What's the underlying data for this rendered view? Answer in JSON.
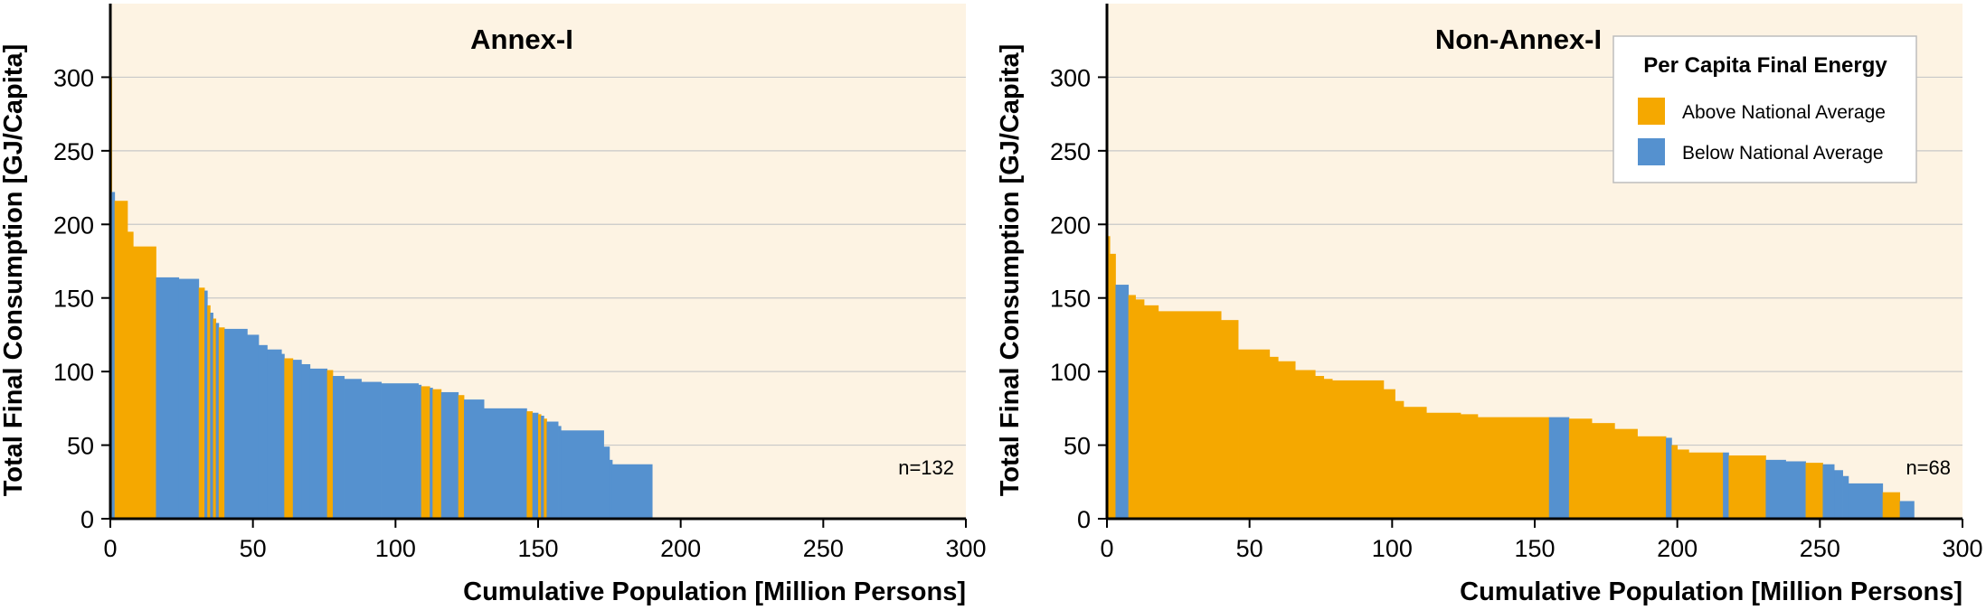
{
  "colors": {
    "background": "#fdf3e3",
    "above": "#f5a800",
    "below": "#5591cf",
    "grid": "#c8c8c8"
  },
  "legend": {
    "title": "Per Capita Final Energy",
    "items": [
      {
        "label": "Above National Average",
        "color": "#f5a800"
      },
      {
        "label": "Below National Average",
        "color": "#5591cf"
      }
    ]
  },
  "chart_data": [
    {
      "type": "area",
      "title": "Annex-I",
      "annotation": "n=132",
      "xlabel": "Cumulative Population [Million Persons]",
      "ylabel": "Total Final Consumption [GJ/Capita]",
      "xlim": [
        0,
        300
      ],
      "ylim": [
        0,
        350
      ],
      "xticks": [
        0,
        50,
        100,
        150,
        200,
        250,
        300
      ],
      "yticks": [
        0,
        50,
        100,
        150,
        200,
        250,
        300
      ],
      "grid": true,
      "segments": [
        {
          "x0": 0,
          "x1": 0.5,
          "y": 300,
          "cls": "above"
        },
        {
          "x0": 0.5,
          "x1": 1.5,
          "y": 222,
          "cls": "below"
        },
        {
          "x0": 1.5,
          "x1": 6,
          "y": 216,
          "cls": "above"
        },
        {
          "x0": 6,
          "x1": 8,
          "y": 195,
          "cls": "above"
        },
        {
          "x0": 8,
          "x1": 16,
          "y": 185,
          "cls": "above"
        },
        {
          "x0": 16,
          "x1": 24,
          "y": 164,
          "cls": "below"
        },
        {
          "x0": 24,
          "x1": 31,
          "y": 163,
          "cls": "below"
        },
        {
          "x0": 31,
          "x1": 33,
          "y": 157,
          "cls": "above"
        },
        {
          "x0": 33,
          "x1": 34,
          "y": 155,
          "cls": "below"
        },
        {
          "x0": 34,
          "x1": 35,
          "y": 145,
          "cls": "above"
        },
        {
          "x0": 35,
          "x1": 36,
          "y": 140,
          "cls": "below"
        },
        {
          "x0": 36,
          "x1": 37,
          "y": 136,
          "cls": "above"
        },
        {
          "x0": 37,
          "x1": 38,
          "y": 133,
          "cls": "below"
        },
        {
          "x0": 38,
          "x1": 40,
          "y": 130,
          "cls": "above"
        },
        {
          "x0": 40,
          "x1": 48,
          "y": 129,
          "cls": "below"
        },
        {
          "x0": 48,
          "x1": 52,
          "y": 125,
          "cls": "below"
        },
        {
          "x0": 52,
          "x1": 55,
          "y": 118,
          "cls": "below"
        },
        {
          "x0": 55,
          "x1": 60,
          "y": 115,
          "cls": "below"
        },
        {
          "x0": 60,
          "x1": 61,
          "y": 112,
          "cls": "below"
        },
        {
          "x0": 61,
          "x1": 64,
          "y": 109,
          "cls": "above"
        },
        {
          "x0": 64,
          "x1": 67,
          "y": 108,
          "cls": "below"
        },
        {
          "x0": 67,
          "x1": 70,
          "y": 105,
          "cls": "below"
        },
        {
          "x0": 70,
          "x1": 76,
          "y": 102,
          "cls": "below"
        },
        {
          "x0": 76,
          "x1": 78,
          "y": 101,
          "cls": "above"
        },
        {
          "x0": 78,
          "x1": 82,
          "y": 97,
          "cls": "below"
        },
        {
          "x0": 82,
          "x1": 88,
          "y": 95,
          "cls": "below"
        },
        {
          "x0": 88,
          "x1": 95,
          "y": 93,
          "cls": "below"
        },
        {
          "x0": 95,
          "x1": 108,
          "y": 92,
          "cls": "below"
        },
        {
          "x0": 108,
          "x1": 109,
          "y": 91,
          "cls": "below"
        },
        {
          "x0": 109,
          "x1": 112,
          "y": 90,
          "cls": "above"
        },
        {
          "x0": 112,
          "x1": 113,
          "y": 89,
          "cls": "below"
        },
        {
          "x0": 113,
          "x1": 116,
          "y": 88,
          "cls": "above"
        },
        {
          "x0": 116,
          "x1": 122,
          "y": 86,
          "cls": "below"
        },
        {
          "x0": 122,
          "x1": 124,
          "y": 84,
          "cls": "above"
        },
        {
          "x0": 124,
          "x1": 131,
          "y": 81,
          "cls": "below"
        },
        {
          "x0": 131,
          "x1": 146,
          "y": 75,
          "cls": "below"
        },
        {
          "x0": 146,
          "x1": 148,
          "y": 73,
          "cls": "above"
        },
        {
          "x0": 148,
          "x1": 150,
          "y": 72,
          "cls": "below"
        },
        {
          "x0": 150,
          "x1": 151,
          "y": 71,
          "cls": "above"
        },
        {
          "x0": 151,
          "x1": 152,
          "y": 70,
          "cls": "below"
        },
        {
          "x0": 152,
          "x1": 153,
          "y": 68,
          "cls": "above"
        },
        {
          "x0": 153,
          "x1": 157,
          "y": 66,
          "cls": "below"
        },
        {
          "x0": 157,
          "x1": 158,
          "y": 63,
          "cls": "below"
        },
        {
          "x0": 158,
          "x1": 173,
          "y": 60,
          "cls": "below"
        },
        {
          "x0": 173,
          "x1": 175,
          "y": 49,
          "cls": "below"
        },
        {
          "x0": 175,
          "x1": 176,
          "y": 40,
          "cls": "below"
        },
        {
          "x0": 176,
          "x1": 190,
          "y": 37,
          "cls": "below"
        }
      ]
    },
    {
      "type": "area",
      "title": "Non-Annex-I",
      "annotation": "n=68",
      "xlabel": "Cumulative Population [Million Persons]",
      "ylabel": "Total Final Consumption [GJ/Capita]",
      "xlim": [
        0,
        300
      ],
      "ylim": [
        0,
        350
      ],
      "xticks": [
        0,
        50,
        100,
        150,
        200,
        250,
        300
      ],
      "yticks": [
        0,
        50,
        100,
        150,
        200,
        250,
        300
      ],
      "grid": true,
      "legend_position": "top-right",
      "segments": [
        {
          "x0": 0,
          "x1": 1,
          "y": 192,
          "cls": "above"
        },
        {
          "x0": 1,
          "x1": 3,
          "y": 180,
          "cls": "above"
        },
        {
          "x0": 3,
          "x1": 7.5,
          "y": 159,
          "cls": "below"
        },
        {
          "x0": 7.5,
          "x1": 10,
          "y": 152,
          "cls": "above"
        },
        {
          "x0": 10,
          "x1": 13,
          "y": 149,
          "cls": "above"
        },
        {
          "x0": 13,
          "x1": 18,
          "y": 145,
          "cls": "above"
        },
        {
          "x0": 18,
          "x1": 40,
          "y": 141,
          "cls": "above"
        },
        {
          "x0": 40,
          "x1": 46,
          "y": 135,
          "cls": "above"
        },
        {
          "x0": 46,
          "x1": 57,
          "y": 115,
          "cls": "above"
        },
        {
          "x0": 57,
          "x1": 60,
          "y": 110,
          "cls": "above"
        },
        {
          "x0": 60,
          "x1": 66,
          "y": 107,
          "cls": "above"
        },
        {
          "x0": 66,
          "x1": 73,
          "y": 101,
          "cls": "above"
        },
        {
          "x0": 73,
          "x1": 76,
          "y": 97,
          "cls": "above"
        },
        {
          "x0": 76,
          "x1": 79,
          "y": 95,
          "cls": "above"
        },
        {
          "x0": 79,
          "x1": 97,
          "y": 94,
          "cls": "above"
        },
        {
          "x0": 97,
          "x1": 101,
          "y": 88,
          "cls": "above"
        },
        {
          "x0": 101,
          "x1": 104,
          "y": 80,
          "cls": "above"
        },
        {
          "x0": 104,
          "x1": 112,
          "y": 76,
          "cls": "above"
        },
        {
          "x0": 112,
          "x1": 124,
          "y": 72,
          "cls": "above"
        },
        {
          "x0": 124,
          "x1": 130,
          "y": 71,
          "cls": "above"
        },
        {
          "x0": 130,
          "x1": 155,
          "y": 69,
          "cls": "above"
        },
        {
          "x0": 155,
          "x1": 162,
          "y": 69,
          "cls": "below"
        },
        {
          "x0": 162,
          "x1": 170,
          "y": 68,
          "cls": "above"
        },
        {
          "x0": 170,
          "x1": 178,
          "y": 65,
          "cls": "above"
        },
        {
          "x0": 178,
          "x1": 186,
          "y": 61,
          "cls": "above"
        },
        {
          "x0": 186,
          "x1": 196,
          "y": 56,
          "cls": "above"
        },
        {
          "x0": 196,
          "x1": 198,
          "y": 55,
          "cls": "below"
        },
        {
          "x0": 198,
          "x1": 200,
          "y": 50,
          "cls": "above"
        },
        {
          "x0": 200,
          "x1": 204,
          "y": 47,
          "cls": "above"
        },
        {
          "x0": 204,
          "x1": 216,
          "y": 45,
          "cls": "above"
        },
        {
          "x0": 216,
          "x1": 218,
          "y": 45,
          "cls": "below"
        },
        {
          "x0": 218,
          "x1": 231,
          "y": 43,
          "cls": "above"
        },
        {
          "x0": 231,
          "x1": 238,
          "y": 40,
          "cls": "below"
        },
        {
          "x0": 238,
          "x1": 245,
          "y": 39,
          "cls": "below"
        },
        {
          "x0": 245,
          "x1": 251,
          "y": 38,
          "cls": "above"
        },
        {
          "x0": 251,
          "x1": 255,
          "y": 37,
          "cls": "below"
        },
        {
          "x0": 255,
          "x1": 258,
          "y": 33,
          "cls": "below"
        },
        {
          "x0": 258,
          "x1": 260,
          "y": 29,
          "cls": "below"
        },
        {
          "x0": 260,
          "x1": 272,
          "y": 24,
          "cls": "below"
        },
        {
          "x0": 272,
          "x1": 278,
          "y": 18,
          "cls": "above"
        },
        {
          "x0": 278,
          "x1": 283,
          "y": 12,
          "cls": "below"
        }
      ]
    }
  ]
}
